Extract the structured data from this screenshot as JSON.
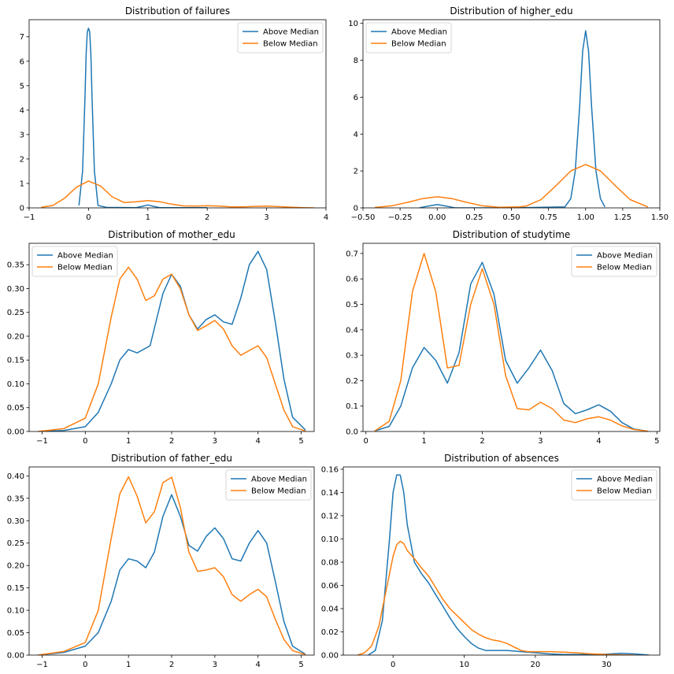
{
  "chart_data": [
    {
      "type": "line",
      "title": "Distribution of failures",
      "xlabel": "",
      "ylabel": "",
      "xlim": [
        -1,
        4
      ],
      "ylim": [
        0,
        7.7
      ],
      "xticks": [
        -1,
        0,
        1,
        2,
        3,
        4
      ],
      "xtick_labels": [
        "−1",
        "0",
        "1",
        "2",
        "3",
        "4"
      ],
      "yticks": [
        0,
        1,
        2,
        3,
        4,
        5,
        6,
        7
      ],
      "ytick_labels": [
        "0",
        "1",
        "2",
        "3",
        "4",
        "5",
        "6",
        "7"
      ],
      "legend": "top-right",
      "grid": false,
      "series": [
        {
          "name": "Above Median",
          "color": "#1f77b4",
          "x": [
            -0.16,
            -0.1,
            -0.06,
            -0.04,
            -0.02,
            0,
            0.02,
            0.04,
            0.06,
            0.1,
            0.16,
            0.3,
            0.8,
            0.9,
            1.0,
            1.1,
            1.2,
            2.0
          ],
          "y": [
            0.1,
            1.5,
            4.5,
            6.3,
            7.2,
            7.35,
            7.2,
            6.3,
            4.5,
            1.5,
            0.1,
            0.02,
            0.01,
            0.06,
            0.12,
            0.06,
            0.01,
            0.01
          ]
        },
        {
          "name": "Below Median",
          "color": "#ff7f0e",
          "x": [
            -0.8,
            -0.6,
            -0.4,
            -0.2,
            0,
            0.2,
            0.4,
            0.6,
            0.8,
            1.0,
            1.2,
            1.4,
            1.6,
            1.8,
            2.0,
            2.2,
            2.4,
            2.6,
            2.8,
            3.0,
            3.2,
            3.4,
            3.6,
            3.8
          ],
          "y": [
            0.02,
            0.1,
            0.4,
            0.85,
            1.1,
            0.9,
            0.45,
            0.22,
            0.25,
            0.3,
            0.25,
            0.15,
            0.08,
            0.07,
            0.09,
            0.07,
            0.04,
            0.04,
            0.06,
            0.07,
            0.05,
            0.03,
            0.01,
            0.0
          ]
        }
      ]
    },
    {
      "type": "line",
      "title": "Distribution of higher_edu",
      "xlabel": "",
      "ylabel": "",
      "xlim": [
        -0.5,
        1.5
      ],
      "ylim": [
        0,
        10.2
      ],
      "xticks": [
        -0.5,
        -0.25,
        0,
        0.25,
        0.5,
        0.75,
        1.0,
        1.25,
        1.5
      ],
      "xtick_labels": [
        "−0.50",
        "−0.25",
        "0.00",
        "0.25",
        "0.50",
        "0.75",
        "1.00",
        "1.25",
        "1.50"
      ],
      "yticks": [
        0,
        2,
        4,
        6,
        8,
        10
      ],
      "ytick_labels": [
        "0",
        "2",
        "4",
        "6",
        "8",
        "10"
      ],
      "legend": "top-left",
      "grid": false,
      "series": [
        {
          "name": "Above Median",
          "color": "#1f77b4",
          "x": [
            -0.12,
            -0.06,
            0,
            0.06,
            0.12,
            0.5,
            0.86,
            0.9,
            0.93,
            0.96,
            0.98,
            1.0,
            1.02,
            1.04,
            1.07,
            1.1,
            1.13
          ],
          "y": [
            0.0,
            0.1,
            0.18,
            0.1,
            0.0,
            0.0,
            0.05,
            0.5,
            2.0,
            5.5,
            8.5,
            9.6,
            8.5,
            5.5,
            2.0,
            0.5,
            0.05
          ]
        },
        {
          "name": "Below Median",
          "color": "#ff7f0e",
          "x": [
            -0.42,
            -0.3,
            -0.2,
            -0.1,
            0,
            0.1,
            0.2,
            0.3,
            0.42,
            0.55,
            0.6,
            0.7,
            0.8,
            0.9,
            1.0,
            1.1,
            1.2,
            1.3,
            1.42
          ],
          "y": [
            0.02,
            0.12,
            0.3,
            0.5,
            0.6,
            0.5,
            0.3,
            0.12,
            0.03,
            0.05,
            0.1,
            0.45,
            1.2,
            2.0,
            2.35,
            2.0,
            1.2,
            0.45,
            0.05
          ]
        }
      ]
    },
    {
      "type": "line",
      "title": "Distribution of mother_edu",
      "xlabel": "",
      "ylabel": "",
      "xlim": [
        -1.3,
        5.3
      ],
      "ylim": [
        0,
        0.395
      ],
      "xticks": [
        -1,
        0,
        1,
        2,
        3,
        4,
        5
      ],
      "xtick_labels": [
        "−1",
        "0",
        "1",
        "2",
        "3",
        "4",
        "5"
      ],
      "yticks": [
        0,
        0.05,
        0.1,
        0.15,
        0.2,
        0.25,
        0.3,
        0.35
      ],
      "ytick_labels": [
        "0.00",
        "0.05",
        "0.10",
        "0.15",
        "0.20",
        "0.25",
        "0.30",
        "0.35"
      ],
      "legend": "top-left",
      "grid": false,
      "series": [
        {
          "name": "Above Median",
          "color": "#1f77b4",
          "x": [
            -1.1,
            -0.5,
            0,
            0.3,
            0.6,
            0.8,
            1.0,
            1.2,
            1.5,
            1.8,
            2.0,
            2.2,
            2.4,
            2.6,
            2.8,
            3.0,
            3.2,
            3.4,
            3.6,
            3.8,
            4.0,
            4.2,
            4.4,
            4.6,
            4.8,
            5.1
          ],
          "y": [
            0.0,
            0.002,
            0.01,
            0.04,
            0.1,
            0.15,
            0.172,
            0.165,
            0.18,
            0.29,
            0.33,
            0.305,
            0.245,
            0.215,
            0.235,
            0.245,
            0.23,
            0.225,
            0.28,
            0.35,
            0.378,
            0.34,
            0.23,
            0.11,
            0.03,
            0.003
          ]
        },
        {
          "name": "Below Median",
          "color": "#ff7f0e",
          "x": [
            -1.1,
            -0.5,
            0,
            0.3,
            0.6,
            0.8,
            1.0,
            1.2,
            1.4,
            1.6,
            1.8,
            2.0,
            2.2,
            2.4,
            2.6,
            2.8,
            3.0,
            3.2,
            3.4,
            3.6,
            3.8,
            4.0,
            4.2,
            4.4,
            4.6,
            4.8,
            5.1
          ],
          "y": [
            0.0,
            0.006,
            0.028,
            0.1,
            0.24,
            0.32,
            0.345,
            0.32,
            0.275,
            0.285,
            0.32,
            0.33,
            0.3,
            0.245,
            0.212,
            0.222,
            0.233,
            0.215,
            0.18,
            0.16,
            0.17,
            0.18,
            0.155,
            0.1,
            0.045,
            0.01,
            0.001
          ]
        }
      ]
    },
    {
      "type": "line",
      "title": "Distribution of studytime",
      "xlabel": "",
      "ylabel": "",
      "xlim": [
        -0.05,
        5.05
      ],
      "ylim": [
        0,
        0.74
      ],
      "xticks": [
        0,
        1,
        2,
        3,
        4,
        5
      ],
      "xtick_labels": [
        "0",
        "1",
        "2",
        "3",
        "4",
        "5"
      ],
      "yticks": [
        0,
        0.1,
        0.2,
        0.3,
        0.4,
        0.5,
        0.6,
        0.7
      ],
      "ytick_labels": [
        "0.0",
        "0.1",
        "0.2",
        "0.3",
        "0.4",
        "0.5",
        "0.6",
        "0.7"
      ],
      "legend": "top-right",
      "grid": false,
      "series": [
        {
          "name": "Above Median",
          "color": "#1f77b4",
          "x": [
            0.15,
            0.4,
            0.6,
            0.8,
            1.0,
            1.2,
            1.4,
            1.6,
            1.8,
            2.0,
            2.2,
            2.4,
            2.6,
            2.8,
            3.0,
            3.2,
            3.4,
            3.6,
            3.8,
            4.0,
            4.2,
            4.4,
            4.6,
            4.85
          ],
          "y": [
            0.002,
            0.02,
            0.1,
            0.25,
            0.33,
            0.28,
            0.19,
            0.31,
            0.58,
            0.665,
            0.54,
            0.28,
            0.19,
            0.25,
            0.32,
            0.24,
            0.11,
            0.07,
            0.085,
            0.105,
            0.08,
            0.035,
            0.01,
            0.001
          ]
        },
        {
          "name": "Below Median",
          "color": "#ff7f0e",
          "x": [
            0.15,
            0.4,
            0.6,
            0.8,
            1.0,
            1.2,
            1.4,
            1.6,
            1.8,
            2.0,
            2.2,
            2.4,
            2.6,
            2.8,
            3.0,
            3.2,
            3.4,
            3.6,
            3.8,
            4.0,
            4.2,
            4.4,
            4.6,
            4.85
          ],
          "y": [
            0.002,
            0.04,
            0.2,
            0.55,
            0.7,
            0.55,
            0.25,
            0.26,
            0.5,
            0.64,
            0.5,
            0.22,
            0.09,
            0.085,
            0.115,
            0.09,
            0.045,
            0.035,
            0.05,
            0.058,
            0.045,
            0.022,
            0.008,
            0.001
          ]
        }
      ]
    },
    {
      "type": "line",
      "title": "Distribution of father_edu",
      "xlabel": "",
      "ylabel": "",
      "xlim": [
        -1.3,
        5.3
      ],
      "ylim": [
        0,
        0.42
      ],
      "xticks": [
        -1,
        0,
        1,
        2,
        3,
        4,
        5
      ],
      "xtick_labels": [
        "−1",
        "0",
        "1",
        "2",
        "3",
        "4",
        "5"
      ],
      "yticks": [
        0,
        0.05,
        0.1,
        0.15,
        0.2,
        0.25,
        0.3,
        0.35,
        0.4
      ],
      "ytick_labels": [
        "0.00",
        "0.05",
        "0.10",
        "0.15",
        "0.20",
        "0.25",
        "0.30",
        "0.35",
        "0.40"
      ],
      "legend": "top-right",
      "grid": false,
      "series": [
        {
          "name": "Above Median",
          "color": "#1f77b4",
          "x": [
            -1.1,
            -0.5,
            0,
            0.3,
            0.6,
            0.8,
            1.0,
            1.2,
            1.4,
            1.6,
            1.8,
            2.0,
            2.2,
            2.4,
            2.6,
            2.8,
            3.0,
            3.2,
            3.4,
            3.6,
            3.8,
            4.0,
            4.2,
            4.4,
            4.6,
            4.8,
            5.1
          ],
          "y": [
            0.0,
            0.006,
            0.02,
            0.05,
            0.12,
            0.19,
            0.215,
            0.21,
            0.195,
            0.23,
            0.31,
            0.358,
            0.31,
            0.245,
            0.232,
            0.265,
            0.284,
            0.26,
            0.215,
            0.21,
            0.25,
            0.278,
            0.25,
            0.165,
            0.075,
            0.02,
            0.002
          ]
        },
        {
          "name": "Below Median",
          "color": "#ff7f0e",
          "x": [
            -1.1,
            -0.5,
            0,
            0.3,
            0.6,
            0.8,
            1.0,
            1.2,
            1.4,
            1.6,
            1.8,
            2.0,
            2.2,
            2.4,
            2.6,
            2.8,
            3.0,
            3.2,
            3.4,
            3.6,
            3.8,
            4.0,
            4.2,
            4.4,
            4.6,
            4.8,
            5.1
          ],
          "y": [
            0.0,
            0.008,
            0.028,
            0.1,
            0.26,
            0.36,
            0.398,
            0.355,
            0.295,
            0.32,
            0.385,
            0.397,
            0.33,
            0.23,
            0.187,
            0.19,
            0.195,
            0.175,
            0.135,
            0.12,
            0.135,
            0.147,
            0.13,
            0.08,
            0.035,
            0.01,
            0.001
          ]
        }
      ]
    },
    {
      "type": "line",
      "title": "Distribution of absences",
      "xlabel": "",
      "ylabel": "",
      "xlim": [
        -7,
        37.5
      ],
      "ylim": [
        0,
        0.162
      ],
      "xticks": [
        0,
        10,
        20,
        30
      ],
      "xtick_labels": [
        "0",
        "10",
        "20",
        "30"
      ],
      "yticks": [
        0,
        0.02,
        0.04,
        0.06,
        0.08,
        0.1,
        0.12,
        0.14,
        0.16
      ],
      "ytick_labels": [
        "0.00",
        "0.02",
        "0.04",
        "0.06",
        "0.08",
        "0.10",
        "0.12",
        "0.14",
        "0.16"
      ],
      "legend": "top-right",
      "grid": false,
      "series": [
        {
          "name": "Above Median",
          "color": "#1f77b4",
          "x": [
            -3.5,
            -2.5,
            -1.5,
            -0.5,
            0,
            0.5,
            1.0,
            1.5,
            2.0,
            3.0,
            4.0,
            5.0,
            6.0,
            7.0,
            8.0,
            9.0,
            10.0,
            11.0,
            12.0,
            13.0,
            14.0,
            16.0,
            18.0,
            20.0,
            22.0,
            24.0,
            26.0,
            28.0,
            30.0,
            32.0,
            34.0,
            36.0
          ],
          "y": [
            0.0,
            0.004,
            0.03,
            0.1,
            0.14,
            0.155,
            0.155,
            0.14,
            0.112,
            0.08,
            0.07,
            0.062,
            0.052,
            0.042,
            0.032,
            0.023,
            0.016,
            0.01,
            0.006,
            0.004,
            0.004,
            0.004,
            0.003,
            0.002,
            0.001,
            0.0005,
            0.0005,
            0.0005,
            0.0008,
            0.0015,
            0.001,
            0.0
          ]
        },
        {
          "name": "Below Median",
          "color": "#ff7f0e",
          "x": [
            -5.0,
            -4.0,
            -3.0,
            -2.0,
            -1.0,
            0,
            0.5,
            1.0,
            1.5,
            2.0,
            3.0,
            4.0,
            5.0,
            6.0,
            7.0,
            8.0,
            9.0,
            10.0,
            11.0,
            12.0,
            13.0,
            14.0,
            15.0,
            16.0,
            17.0,
            18.0,
            19.0,
            20.0,
            22.0,
            24.0,
            26.0,
            28.0,
            30.0,
            32.0,
            34.0
          ],
          "y": [
            0.0,
            0.002,
            0.008,
            0.025,
            0.055,
            0.085,
            0.095,
            0.098,
            0.096,
            0.09,
            0.083,
            0.075,
            0.068,
            0.058,
            0.048,
            0.04,
            0.034,
            0.028,
            0.022,
            0.018,
            0.015,
            0.013,
            0.012,
            0.01,
            0.007,
            0.004,
            0.003,
            0.003,
            0.003,
            0.0025,
            0.0018,
            0.001,
            0.0005,
            0.0002,
            0.0
          ]
        }
      ]
    }
  ]
}
